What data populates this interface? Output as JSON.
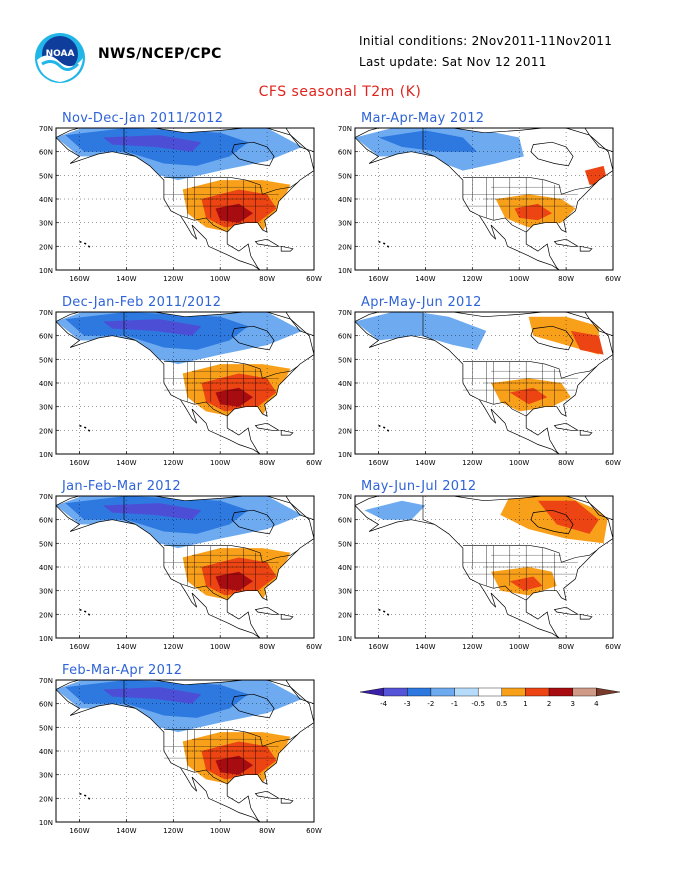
{
  "header": {
    "agency": "NWS/NCEP/CPC",
    "initial_conditions": "Initial conditions: 2Nov2011-11Nov2011",
    "last_update": "Last update: Sat Nov 12 2011",
    "title": "CFS seasonal T2m (K)",
    "logo_text": "NOAA"
  },
  "axes": {
    "lat_labels": [
      "70N",
      "60N",
      "50N",
      "40N",
      "30N",
      "20N",
      "10N"
    ],
    "lon_labels": [
      "160W",
      "140W",
      "120W",
      "100W",
      "80W",
      "60W"
    ]
  },
  "panels": [
    {
      "title": "Nov-Dec-Jan 2011/2012",
      "pattern": "cold_north_warm_south"
    },
    {
      "title": "Mar-Apr-May 2012",
      "pattern": "mild"
    },
    {
      "title": "Dec-Jan-Feb 2011/2012",
      "pattern": "cold_north_warm_south"
    },
    {
      "title": "Apr-May-Jun 2012",
      "pattern": "mild_warm_east"
    },
    {
      "title": "Jan-Feb-Mar 2012",
      "pattern": "cold_north_warm_south"
    },
    {
      "title": "May-Jun-Jul 2012",
      "pattern": "warm_canada"
    },
    {
      "title": "Feb-Mar-Apr 2012",
      "pattern": "cold_north_warm_south"
    }
  ],
  "colorbar": {
    "labels": [
      "-4",
      "-3",
      "-2",
      "-1",
      "-0.5",
      "0.5",
      "1",
      "2",
      "3",
      "4"
    ],
    "colors": [
      "#3a1fa8",
      "#5554d8",
      "#2d79e0",
      "#6eaaf0",
      "#b7dcfb",
      "#ffffff",
      "#f9a01b",
      "#ec4413",
      "#a70c10",
      "#d09a88",
      "#7a3a2a"
    ]
  },
  "colors": {
    "title": "#e0241d",
    "panel_title": "#2f64d6",
    "blue_dark": "#4c4fd6",
    "blue": "#2d79e0",
    "blue_light": "#6eaaf0",
    "orange": "#f9a01b",
    "red": "#ec4413",
    "dark_red": "#a70c10"
  }
}
